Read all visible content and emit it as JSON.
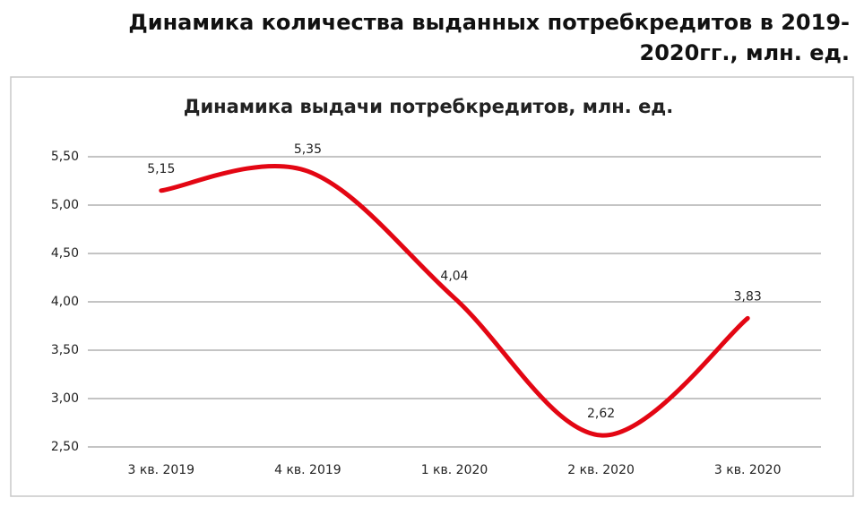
{
  "page_title": "Динамика количества выданных потребкредитов в 2019-2020гг., млн. ед.",
  "chart_data": {
    "type": "line",
    "title": "Динамика выдачи потребкредитов,  млн. ед.",
    "categories": [
      "3 кв. 2019",
      "4 кв. 2019",
      "1 кв. 2020",
      "2 кв. 2020",
      "3 кв. 2020"
    ],
    "values": [
      5.15,
      5.35,
      4.04,
      2.62,
      3.83
    ],
    "value_labels": [
      "5,15",
      "5,35",
      "4,04",
      "2,62",
      "3,83"
    ],
    "color": "#e30613",
    "smooth": true,
    "grid": true,
    "ylim": [
      2.5,
      5.5
    ],
    "yticks": [
      {
        "value": 2.5,
        "label": "2,50"
      },
      {
        "value": 3,
        "label": "3,00"
      },
      {
        "value": 3.5,
        "label": "3,50"
      },
      {
        "value": 4,
        "label": "4,00"
      },
      {
        "value": 4.5,
        "label": "4,50"
      },
      {
        "value": 5,
        "label": "5,00"
      },
      {
        "value": 5.5,
        "label": "5,50"
      }
    ]
  }
}
